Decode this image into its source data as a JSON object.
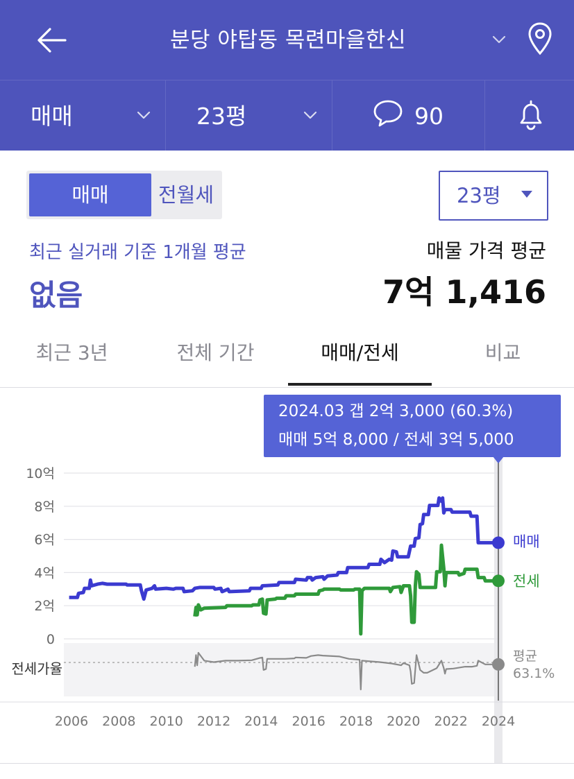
{
  "header": {
    "title": "분당 야탑동 목련마을한신"
  },
  "subbar": {
    "trade_type": "매매",
    "area": "23평",
    "comment_count": "90"
  },
  "segment": {
    "options": [
      "매매",
      "전월세"
    ],
    "selected": "매매"
  },
  "area_select": {
    "value": "23평"
  },
  "summary": {
    "recent_label": "최근 실거래 기준 1개월 평균",
    "recent_value": "없음",
    "listing_label": "매물 가격 평균",
    "listing_value": "7억 1,416"
  },
  "tabs": [
    {
      "label": "최근 3년"
    },
    {
      "label": "전체 기간"
    },
    {
      "label": "매매/전세"
    },
    {
      "label": "비교"
    }
  ],
  "colors": {
    "brand": "#4e54bb",
    "sale_line": "#3b3ad0",
    "jeonse_line": "#2f9a3a",
    "ratio_line": "#8a8a8a"
  },
  "chart_data": {
    "type": "line",
    "tooltip": {
      "line1": "2024.03  갭 2억 3,000 (60.3%)",
      "line2": "매매 5억 8,000 / 전세 3억 5,000"
    },
    "x_ticks": [
      "2006",
      "2008",
      "2010",
      "2012",
      "2014",
      "2016",
      "2018",
      "2020",
      "2022",
      "2024"
    ],
    "y_ticks": [
      "10억",
      "8억",
      "6억",
      "4억",
      "2억",
      "0"
    ],
    "ylim": [
      0,
      10
    ],
    "xlim": [
      2005.9,
      2024.3
    ],
    "ratio_label": "전세가율",
    "ratio_end_label": "평균",
    "ratio_end_value": "63.1%",
    "series": [
      {
        "name": "매매",
        "color": "#3b3ad0",
        "points": [
          [
            2005.9,
            2.5
          ],
          [
            2006.25,
            2.5
          ],
          [
            2006.3,
            2.75
          ],
          [
            2006.5,
            2.8
          ],
          [
            2006.55,
            3.05
          ],
          [
            2006.75,
            3.05
          ],
          [
            2006.8,
            3.55
          ],
          [
            2006.85,
            3.2
          ],
          [
            2007.1,
            3.3
          ],
          [
            2007.3,
            3.35
          ],
          [
            2007.5,
            3.3
          ],
          [
            2008.3,
            3.3
          ],
          [
            2008.35,
            3.25
          ],
          [
            2008.9,
            3.25
          ],
          [
            2008.95,
            2.9
          ],
          [
            2009.05,
            2.4
          ],
          [
            2009.15,
            2.95
          ],
          [
            2009.4,
            3.05
          ],
          [
            2009.5,
            3.2
          ],
          [
            2009.55,
            3.0
          ],
          [
            2010.0,
            3.05
          ],
          [
            2010.3,
            3.0
          ],
          [
            2010.4,
            3.05
          ],
          [
            2010.7,
            3.05
          ],
          [
            2010.75,
            2.85
          ],
          [
            2011.1,
            2.9
          ],
          [
            2011.2,
            3.05
          ],
          [
            2011.4,
            3.1
          ],
          [
            2012.0,
            3.1
          ],
          [
            2012.05,
            3.0
          ],
          [
            2012.3,
            3.05
          ],
          [
            2012.35,
            2.85
          ],
          [
            2012.6,
            3.0
          ],
          [
            2012.65,
            2.85
          ],
          [
            2013.5,
            2.9
          ],
          [
            2013.55,
            3.05
          ],
          [
            2014.0,
            3.05
          ],
          [
            2014.05,
            3.2
          ],
          [
            2014.7,
            3.25
          ],
          [
            2014.75,
            3.4
          ],
          [
            2015.4,
            3.4
          ],
          [
            2015.45,
            3.6
          ],
          [
            2015.9,
            3.55
          ],
          [
            2015.95,
            3.7
          ],
          [
            2016.1,
            3.7
          ],
          [
            2016.15,
            3.55
          ],
          [
            2016.3,
            3.7
          ],
          [
            2016.6,
            3.75
          ],
          [
            2016.65,
            3.6
          ],
          [
            2016.8,
            3.8
          ],
          [
            2017.2,
            3.85
          ],
          [
            2017.25,
            4.0
          ],
          [
            2017.6,
            4.0
          ],
          [
            2017.65,
            4.3
          ],
          [
            2018.5,
            4.3
          ],
          [
            2018.55,
            4.5
          ],
          [
            2019.0,
            4.5
          ],
          [
            2019.05,
            4.8
          ],
          [
            2019.2,
            4.6
          ],
          [
            2019.4,
            4.8
          ],
          [
            2019.5,
            4.75
          ],
          [
            2019.55,
            5.3
          ],
          [
            2019.7,
            5.25
          ],
          [
            2019.75,
            4.95
          ],
          [
            2020.2,
            4.95
          ],
          [
            2020.3,
            5.6
          ],
          [
            2020.45,
            5.6
          ],
          [
            2020.5,
            6.05
          ],
          [
            2020.65,
            6.1
          ],
          [
            2020.7,
            6.9
          ],
          [
            2020.8,
            6.95
          ],
          [
            2020.85,
            7.5
          ],
          [
            2021.05,
            7.5
          ],
          [
            2021.1,
            8.05
          ],
          [
            2021.45,
            8.05
          ],
          [
            2021.5,
            8.5
          ],
          [
            2021.6,
            8.3
          ],
          [
            2021.65,
            8.5
          ],
          [
            2021.7,
            7.6
          ],
          [
            2021.75,
            7.8
          ],
          [
            2022.0,
            7.8
          ],
          [
            2022.05,
            7.65
          ],
          [
            2022.8,
            7.65
          ],
          [
            2022.85,
            7.4
          ],
          [
            2023.1,
            7.4
          ],
          [
            2023.15,
            5.8
          ],
          [
            2024.0,
            5.8
          ]
        ]
      },
      {
        "name": "전세",
        "color": "#2f9a3a",
        "points": [
          [
            2011.2,
            1.35
          ],
          [
            2011.25,
            1.9
          ],
          [
            2011.3,
            1.45
          ],
          [
            2011.35,
            2.05
          ],
          [
            2011.45,
            1.75
          ],
          [
            2011.6,
            1.85
          ],
          [
            2012.5,
            1.9
          ],
          [
            2012.55,
            2.0
          ],
          [
            2013.6,
            2.0
          ],
          [
            2013.65,
            2.05
          ],
          [
            2013.9,
            2.05
          ],
          [
            2013.95,
            2.35
          ],
          [
            2014.05,
            2.4
          ],
          [
            2014.1,
            1.55
          ],
          [
            2014.2,
            1.5
          ],
          [
            2014.25,
            2.35
          ],
          [
            2014.6,
            2.4
          ],
          [
            2014.65,
            2.45
          ],
          [
            2015.0,
            2.45
          ],
          [
            2015.05,
            2.6
          ],
          [
            2015.4,
            2.6
          ],
          [
            2015.45,
            2.7
          ],
          [
            2016.4,
            2.7
          ],
          [
            2016.45,
            2.9
          ],
          [
            2016.6,
            2.95
          ],
          [
            2016.65,
            3.0
          ],
          [
            2017.3,
            3.0
          ],
          [
            2017.35,
            2.95
          ],
          [
            2017.9,
            2.95
          ],
          [
            2017.95,
            3.0
          ],
          [
            2018.15,
            3.0
          ],
          [
            2018.2,
            0.3
          ],
          [
            2018.25,
            2.9
          ],
          [
            2018.35,
            3.05
          ],
          [
            2019.4,
            3.05
          ],
          [
            2019.45,
            2.85
          ],
          [
            2019.55,
            3.1
          ],
          [
            2019.85,
            3.15
          ],
          [
            2019.9,
            2.8
          ],
          [
            2020.0,
            3.2
          ],
          [
            2020.25,
            3.2
          ],
          [
            2020.3,
            2.6
          ],
          [
            2020.35,
            1.0
          ],
          [
            2020.45,
            1.0
          ],
          [
            2020.5,
            3.2
          ],
          [
            2020.55,
            4.05
          ],
          [
            2020.65,
            3.9
          ],
          [
            2020.7,
            3.1
          ],
          [
            2020.75,
            3.1
          ],
          [
            2021.0,
            3.1
          ],
          [
            2021.35,
            3.1
          ],
          [
            2021.4,
            4.05
          ],
          [
            2021.55,
            4.05
          ],
          [
            2021.6,
            5.65
          ],
          [
            2021.7,
            4.25
          ],
          [
            2021.75,
            3.2
          ],
          [
            2021.8,
            4.0
          ],
          [
            2022.3,
            4.0
          ],
          [
            2022.35,
            3.85
          ],
          [
            2022.55,
            3.95
          ],
          [
            2022.6,
            4.2
          ],
          [
            2023.1,
            4.2
          ],
          [
            2023.15,
            3.7
          ],
          [
            2023.4,
            3.7
          ],
          [
            2023.45,
            3.5
          ],
          [
            2024.0,
            3.5
          ]
        ]
      },
      {
        "name": "전세가율",
        "color": "#8a8a8a",
        "points": [
          [
            2011.2,
            0.55
          ],
          [
            2011.25,
            0.8
          ],
          [
            2011.3,
            0.58
          ],
          [
            2011.35,
            0.85
          ],
          [
            2011.6,
            0.68
          ],
          [
            2012.0,
            0.65
          ],
          [
            2012.5,
            0.68
          ],
          [
            2013.0,
            0.68
          ],
          [
            2013.6,
            0.69
          ],
          [
            2013.95,
            0.74
          ],
          [
            2014.05,
            0.75
          ],
          [
            2014.1,
            0.48
          ],
          [
            2014.2,
            0.5
          ],
          [
            2014.25,
            0.72
          ],
          [
            2014.7,
            0.72
          ],
          [
            2015.0,
            0.72
          ],
          [
            2015.4,
            0.73
          ],
          [
            2015.45,
            0.75
          ],
          [
            2015.9,
            0.74
          ],
          [
            2016.1,
            0.78
          ],
          [
            2016.4,
            0.8
          ],
          [
            2016.6,
            0.79
          ],
          [
            2017.3,
            0.77
          ],
          [
            2017.7,
            0.72
          ],
          [
            2018.15,
            0.7
          ],
          [
            2018.2,
            0.06
          ],
          [
            2018.25,
            0.68
          ],
          [
            2018.5,
            0.67
          ],
          [
            2019.0,
            0.65
          ],
          [
            2019.5,
            0.62
          ],
          [
            2019.9,
            0.58
          ],
          [
            2020.0,
            0.63
          ],
          [
            2020.25,
            0.58
          ],
          [
            2020.3,
            0.45
          ],
          [
            2020.35,
            0.18
          ],
          [
            2020.45,
            0.2
          ],
          [
            2020.5,
            0.5
          ],
          [
            2020.55,
            0.8
          ],
          [
            2020.7,
            0.48
          ],
          [
            2020.85,
            0.42
          ],
          [
            2021.0,
            0.42
          ],
          [
            2021.4,
            0.52
          ],
          [
            2021.6,
            0.68
          ],
          [
            2021.7,
            0.52
          ],
          [
            2021.75,
            0.4
          ],
          [
            2021.8,
            0.5
          ],
          [
            2022.1,
            0.51
          ],
          [
            2022.6,
            0.55
          ],
          [
            2022.9,
            0.55
          ],
          [
            2023.1,
            0.57
          ],
          [
            2023.15,
            0.68
          ],
          [
            2023.45,
            0.6
          ],
          [
            2024.0,
            0.6
          ]
        ]
      }
    ],
    "end_markers": {
      "sale": "매매",
      "jeonse": "전세"
    }
  }
}
